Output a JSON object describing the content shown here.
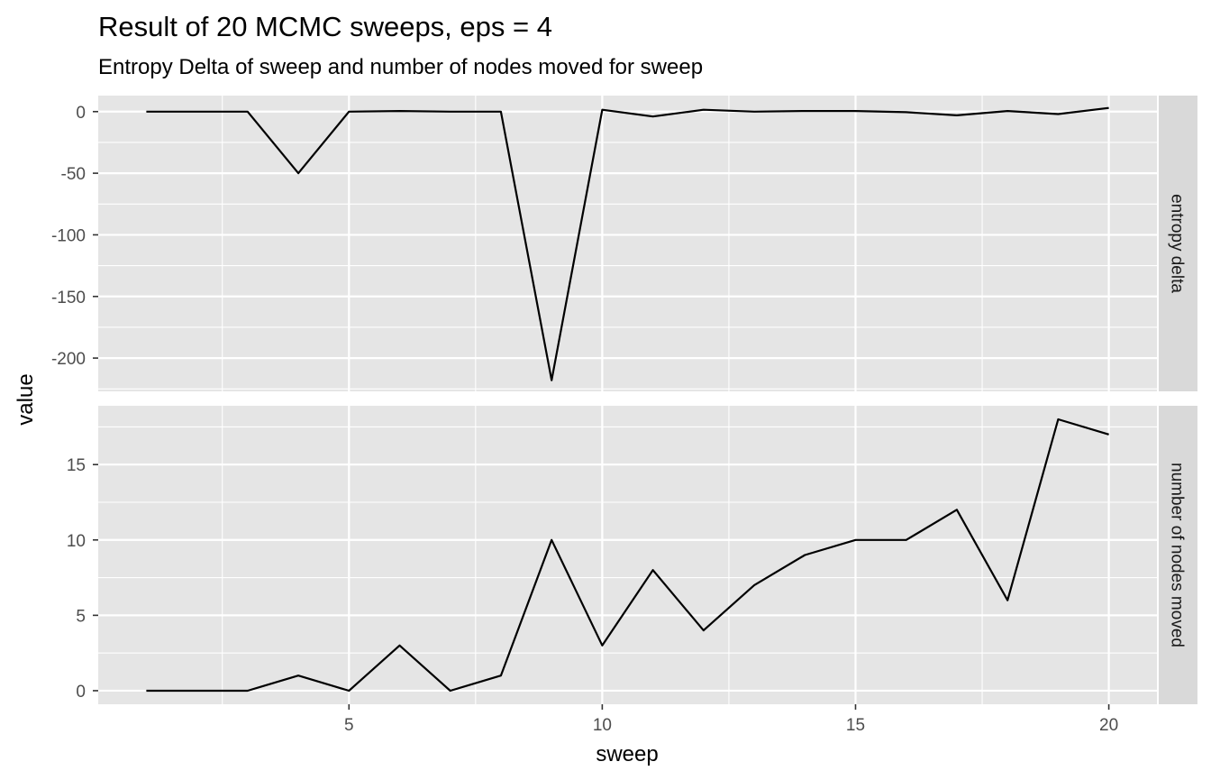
{
  "chart_data": {
    "type": "line",
    "title": "Result of 20 MCMC sweeps, eps = 4",
    "subtitle": "Entropy Delta of sweep and number of nodes moved for sweep",
    "xlabel": "sweep",
    "ylabel": "value",
    "x_ticks": [
      5,
      10,
      15,
      20
    ],
    "xlim": [
      0.05,
      20.95
    ],
    "grid": true,
    "legend": "none",
    "colors": {
      "panel": "#e5e5e5",
      "strip": "#d9d9d9",
      "grid": "#ffffff",
      "line": "#000000"
    },
    "panels": [
      {
        "strip_label": "entropy delta",
        "ylim": [
          -227,
          13
        ],
        "y_ticks": [
          0,
          -50,
          -100,
          -150,
          -200
        ],
        "y_tick_labels": [
          "0",
          "-50",
          "-100",
          "-150",
          "-200"
        ],
        "x": [
          1,
          2,
          3,
          4,
          5,
          6,
          7,
          8,
          9,
          10,
          11,
          12,
          13,
          14,
          15,
          16,
          17,
          18,
          19,
          20
        ],
        "values": [
          0,
          0,
          0,
          -50,
          0,
          0.5,
          0,
          0,
          -218,
          1.5,
          -4,
          1.5,
          0,
          0.5,
          0.5,
          -0.5,
          -3,
          0.5,
          -2,
          3
        ]
      },
      {
        "strip_label": "number of nodes moved",
        "ylim": [
          -0.9,
          18.9
        ],
        "y_ticks": [
          0,
          5,
          10,
          15
        ],
        "y_tick_labels": [
          "0",
          "5",
          "10",
          "15"
        ],
        "x": [
          1,
          2,
          3,
          4,
          5,
          6,
          7,
          8,
          9,
          10,
          11,
          12,
          13,
          14,
          15,
          16,
          17,
          18,
          19,
          20
        ],
        "values": [
          0,
          0,
          0,
          1,
          0,
          3,
          0,
          1,
          10,
          3,
          8,
          4,
          7,
          9,
          10,
          10,
          12,
          6,
          18,
          17
        ]
      }
    ]
  }
}
